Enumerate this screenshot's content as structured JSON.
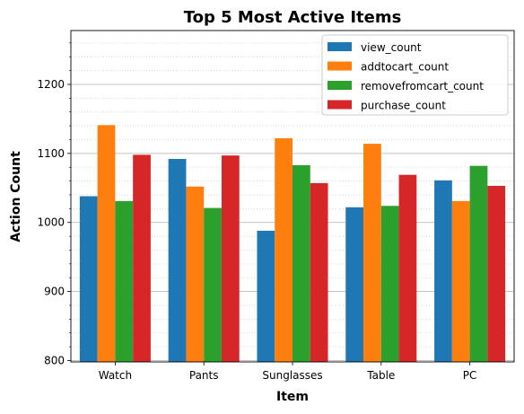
{
  "chart_data": {
    "type": "bar",
    "title": "Top 5 Most Active Items",
    "xlabel": "Item",
    "ylabel": "Action Count",
    "categories": [
      "Watch",
      "Pants",
      "Sunglasses",
      "Table",
      "PC"
    ],
    "series": [
      {
        "name": "view_count",
        "color": "#1f77b4",
        "values": [
          1038,
          1092,
          988,
          1022,
          1061
        ]
      },
      {
        "name": "addtocart_count",
        "color": "#ff7f0e",
        "values": [
          1141,
          1052,
          1122,
          1114,
          1031
        ]
      },
      {
        "name": "removefromcart_count",
        "color": "#2ca02c",
        "values": [
          1031,
          1021,
          1083,
          1024,
          1082
        ]
      },
      {
        "name": "purchase_count",
        "color": "#d62728",
        "values": [
          1098,
          1097,
          1057,
          1069,
          1053
        ]
      }
    ],
    "ylim": [
      798,
      1278
    ],
    "yticks": [
      800,
      900,
      1000,
      1100,
      1200
    ],
    "grid": "y major and minor",
    "legend": "top-right"
  }
}
